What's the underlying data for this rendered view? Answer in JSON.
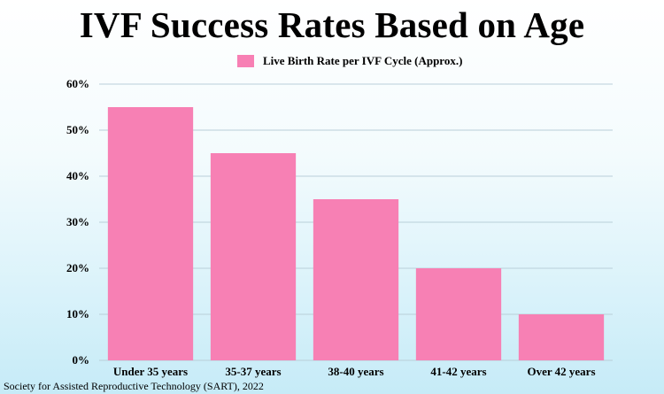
{
  "chart_data": {
    "type": "bar",
    "title": "IVF Success Rates Based on Age",
    "categories": [
      "Under 35 years",
      "35-37 years",
      "38-40 years",
      "41-42 years",
      "Over 42 years"
    ],
    "series": [
      {
        "name": "Live Birth Rate per IVF Cycle (Approx.)",
        "values": [
          55,
          45,
          35,
          20,
          10
        ]
      }
    ],
    "y_ticks": [
      "0%",
      "10%",
      "20%",
      "30%",
      "40%",
      "50%",
      "60%"
    ],
    "ylim": [
      0,
      60
    ],
    "xlabel": "",
    "ylabel": "",
    "grid": true,
    "legend_position": "top-center",
    "bar_color": "#f780b4",
    "grid_color": "#b9cfd9"
  },
  "source_note": "Society for Assisted Reproductive Technology (SART), 2022"
}
